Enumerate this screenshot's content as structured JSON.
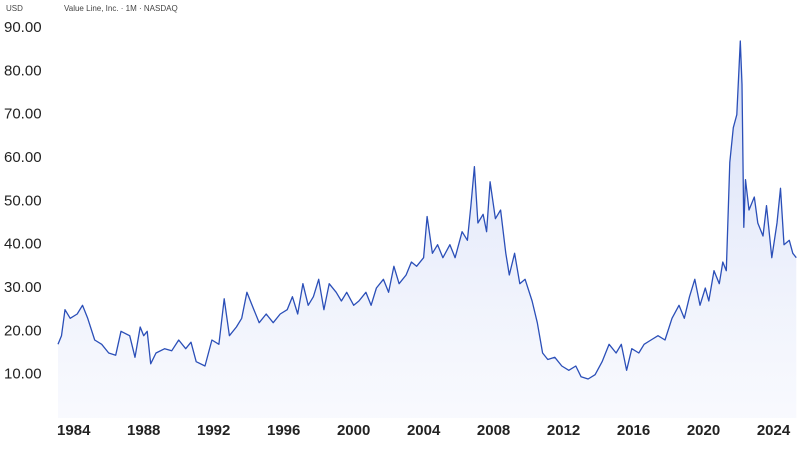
{
  "chart_data": {
    "type": "area",
    "currency": "USD",
    "subtitle": "Value Line, Inc. · 1M · NASDAQ",
    "color": "#2b4fb8",
    "x": [
      1983.1,
      1983.3,
      1983.5,
      1983.8,
      1984.2,
      1984.5,
      1984.8,
      1985.2,
      1985.6,
      1986.0,
      1986.4,
      1986.7,
      1987.2,
      1987.5,
      1987.8,
      1988.0,
      1988.2,
      1988.4,
      1988.7,
      1989.2,
      1989.6,
      1990.0,
      1990.4,
      1990.7,
      1991.0,
      1991.5,
      1991.9,
      1992.3,
      1992.6,
      1992.9,
      1993.3,
      1993.6,
      1993.9,
      1994.3,
      1994.6,
      1995.0,
      1995.4,
      1995.8,
      1996.2,
      1996.5,
      1996.8,
      1997.1,
      1997.4,
      1997.7,
      1998.0,
      1998.3,
      1998.6,
      1999.0,
      1999.3,
      1999.6,
      2000.0,
      2000.3,
      2000.7,
      2001.0,
      2001.3,
      2001.7,
      2002.0,
      2002.3,
      2002.6,
      2003.0,
      2003.3,
      2003.6,
      2004.0,
      2004.2,
      2004.5,
      2004.8,
      2005.1,
      2005.5,
      2005.8,
      2006.2,
      2006.5,
      2006.7,
      2006.9,
      2007.1,
      2007.4,
      2007.6,
      2007.8,
      2008.1,
      2008.4,
      2008.7,
      2008.9,
      2009.2,
      2009.5,
      2009.8,
      2010.2,
      2010.5,
      2010.8,
      2011.1,
      2011.5,
      2011.9,
      2012.3,
      2012.7,
      2013.0,
      2013.4,
      2013.8,
      2014.2,
      2014.6,
      2015.0,
      2015.3,
      2015.6,
      2015.9,
      2016.3,
      2016.6,
      2017.0,
      2017.4,
      2017.8,
      2018.2,
      2018.6,
      2018.9,
      2019.2,
      2019.5,
      2019.8,
      2020.1,
      2020.3,
      2020.6,
      2020.9,
      2021.1,
      2021.3,
      2021.5,
      2021.7,
      2021.9,
      2022.1,
      2022.2,
      2022.3,
      2022.4,
      2022.6,
      2022.9,
      2023.1,
      2023.4,
      2023.6,
      2023.9,
      2024.2,
      2024.4,
      2024.6,
      2024.9,
      2025.1,
      2025.3
    ],
    "values": [
      17,
      19,
      25,
      23,
      24,
      26,
      23,
      18,
      17,
      15,
      14.5,
      20,
      19,
      14,
      21,
      19,
      20,
      12.5,
      15,
      16,
      15.5,
      18,
      16,
      17.5,
      13,
      12,
      18,
      17,
      27.5,
      19,
      21,
      23,
      29,
      25,
      22,
      24,
      22,
      24,
      25,
      28,
      24,
      31,
      26,
      28,
      32,
      25,
      31,
      29,
      27,
      29,
      26,
      27,
      29,
      26,
      30,
      32,
      29,
      35,
      31,
      33,
      36,
      35,
      37,
      46.5,
      38,
      40,
      37,
      40,
      37,
      43,
      41,
      49,
      58,
      45,
      47,
      43,
      54.5,
      46,
      48,
      38,
      33,
      38,
      31,
      32,
      27,
      22,
      15,
      13.5,
      14,
      12,
      11,
      12,
      9.5,
      9,
      10,
      13,
      17,
      15,
      17,
      11,
      16,
      15,
      17,
      18,
      19,
      18,
      23,
      26,
      23,
      28,
      32,
      26,
      30,
      27,
      34,
      31,
      36,
      34,
      59,
      67,
      70,
      87,
      77,
      44,
      55,
      48,
      51,
      45,
      42,
      49,
      37,
      45,
      53,
      40,
      41,
      38,
      37
    ],
    "xlim": [
      1983.1,
      2025.4
    ],
    "ylim": [
      0,
      93
    ],
    "xticks": [
      1984,
      1988,
      1992,
      1996,
      2000,
      2004,
      2008,
      2012,
      2016,
      2020,
      2024
    ],
    "yticks": [
      {
        "value": 10,
        "label": "10.00"
      },
      {
        "value": 20,
        "label": "20.00"
      },
      {
        "value": 30,
        "label": "30.00"
      },
      {
        "value": 40,
        "label": "40.00"
      },
      {
        "value": 50,
        "label": "50.00"
      },
      {
        "value": 60,
        "label": "60.00"
      },
      {
        "value": 70,
        "label": "70.00"
      },
      {
        "value": 80,
        "label": "80.00"
      },
      {
        "value": 90,
        "label": "90.00"
      }
    ]
  }
}
